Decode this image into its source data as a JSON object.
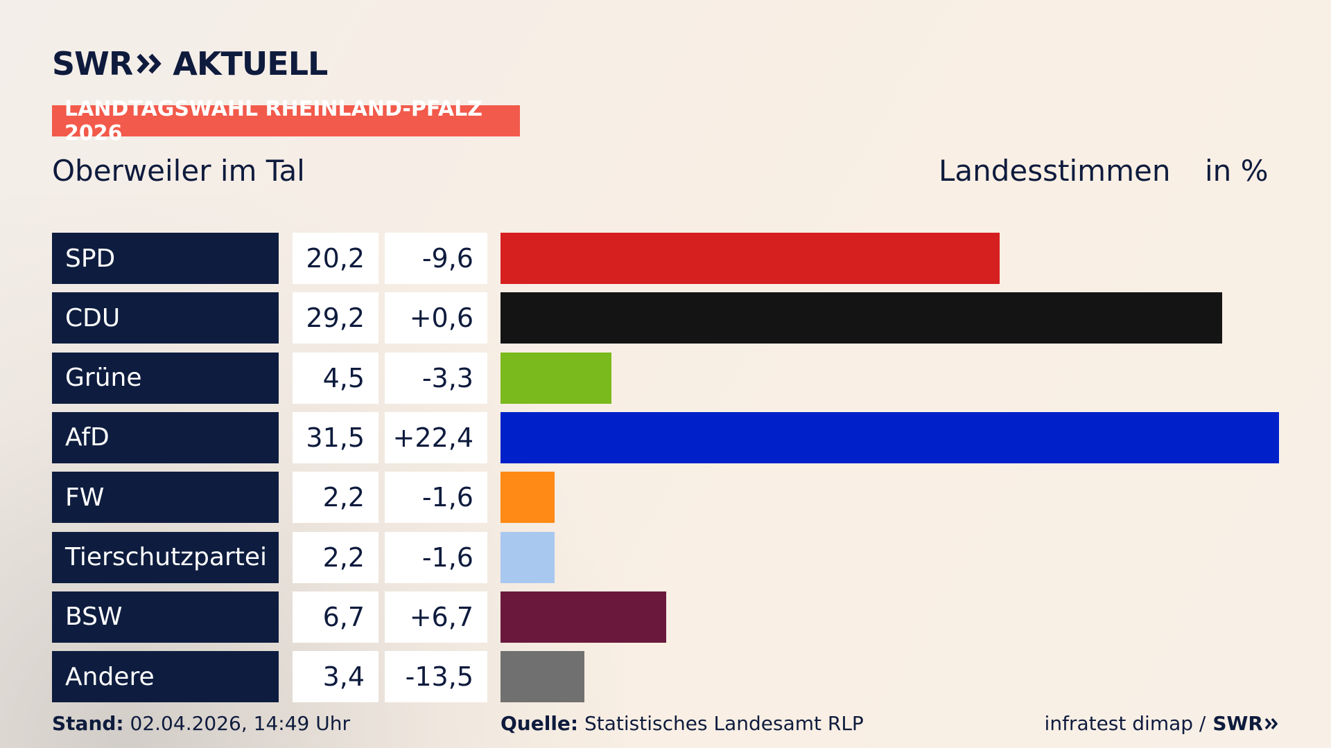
{
  "header": {
    "logo_left": "SWR",
    "logo_right": "AKTUELL",
    "tag": "LANDTAGSWAHL RHEINLAND-PFALZ 2026",
    "location": "Oberweiler im Tal",
    "measure": "Landesstimmen",
    "unit": "in %"
  },
  "colors": {
    "navy": "#0e1d3f",
    "tag_red": "#f25a4b",
    "accent_dark": "#0e1b3d"
  },
  "chart_data": {
    "type": "bar",
    "orientation": "horizontal",
    "categories": [
      "SPD",
      "CDU",
      "Grüne",
      "AfD",
      "FW",
      "Tierschutzpartei",
      "BSW",
      "Andere"
    ],
    "values": [
      20.2,
      29.2,
      4.5,
      31.5,
      2.2,
      2.2,
      6.7,
      3.4
    ],
    "value_labels": [
      "20,2",
      "29,2",
      "4,5",
      "31,5",
      "2,2",
      "2,2",
      "6,7",
      "3,4"
    ],
    "diff_labels": [
      "-9,6",
      "+0,6",
      "-3,3",
      "+22,4",
      "-1,6",
      "-1,6",
      "+6,7",
      "-13,5"
    ],
    "bar_colors": [
      "#d61f1f",
      "#141414",
      "#7aba1c",
      "#0021c9",
      "#ff8a16",
      "#a9c8ef",
      "#6a193d",
      "#707070"
    ],
    "xlim": [
      0,
      31.5
    ],
    "grid": false,
    "legend": "none"
  },
  "footer": {
    "stand_label": "Stand:",
    "stand_value": "02.04.2026, 14:49 Uhr",
    "source_label": "Quelle:",
    "source_value": "Statistisches Landesamt RLP",
    "credit": "infratest dimap /",
    "credit_brand": "SWR"
  }
}
